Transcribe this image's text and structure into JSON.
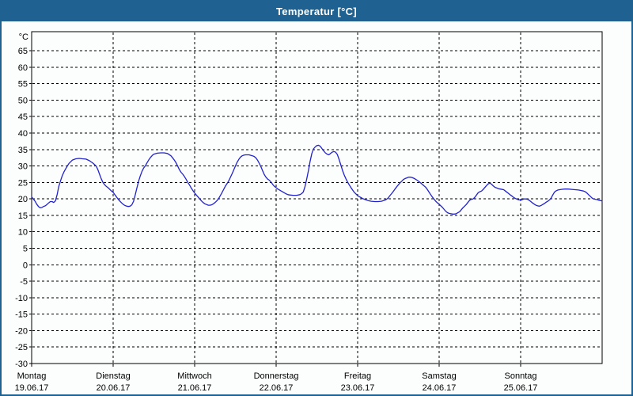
{
  "window": {
    "title": "Temperatur [°C]",
    "titlebar_color": "#1f6291",
    "border_color": "#1f6291",
    "background_color": "#fcfdfd"
  },
  "chart_data": {
    "type": "line",
    "title": "Temperatur [°C]",
    "y_unit_label": "°C",
    "ylabel": "",
    "xlabel": "",
    "ylim": [
      -30,
      70.8
    ],
    "y_ticks": [
      65,
      60,
      55,
      50,
      45,
      40,
      35,
      30,
      25,
      20,
      15,
      10,
      5,
      0,
      -5,
      -10,
      -15,
      -20,
      -25,
      -30
    ],
    "x_hours_total": 168,
    "x_tick_hours": [
      0,
      24,
      48,
      72,
      96,
      120,
      144
    ],
    "x_days": [
      {
        "name": "Montag",
        "date": "19.06.17"
      },
      {
        "name": "Dienstag",
        "date": "20.06.17"
      },
      {
        "name": "Mittwoch",
        "date": "21.06.17"
      },
      {
        "name": "Donnerstag",
        "date": "22.06.17"
      },
      {
        "name": "Freitag",
        "date": "23.06.17"
      },
      {
        "name": "Samstag",
        "date": "24.06.17"
      },
      {
        "name": "Sonntag",
        "date": "25.06.17"
      }
    ],
    "grid": "dashed",
    "legend": "none",
    "line_color": "#2222cc",
    "grid_color": "#000000",
    "frame_color": "#000000",
    "text_color": "#000000",
    "series": [
      {
        "name": "Temperatur",
        "points": [
          [
            0,
            20.6
          ],
          [
            0.5,
            20
          ],
          [
            1,
            19.3
          ],
          [
            1.5,
            18.4
          ],
          [
            2,
            17.7
          ],
          [
            2.5,
            17.3
          ],
          [
            3,
            17.4
          ],
          [
            3.5,
            17.7
          ],
          [
            4,
            17.9
          ],
          [
            4.5,
            18.3
          ],
          [
            5,
            18.8
          ],
          [
            5.5,
            19.2
          ],
          [
            6,
            19.2
          ],
          [
            6.5,
            18.9
          ],
          [
            7,
            19.4
          ],
          [
            7.5,
            21.3
          ],
          [
            8,
            23.8
          ],
          [
            8.5,
            25.5
          ],
          [
            9,
            27
          ],
          [
            9.5,
            28.2
          ],
          [
            10,
            29.1
          ],
          [
            10.5,
            30
          ],
          [
            11,
            30.8
          ],
          [
            11.5,
            31.3
          ],
          [
            12,
            31.8
          ],
          [
            13,
            32.2
          ],
          [
            14,
            32.3
          ],
          [
            15,
            32.2
          ],
          [
            16,
            32.1
          ],
          [
            17,
            31.6
          ],
          [
            18,
            30.9
          ],
          [
            19,
            30
          ],
          [
            19.5,
            28.9
          ],
          [
            20,
            27.5
          ],
          [
            20.5,
            26.1
          ],
          [
            21,
            25
          ],
          [
            21.5,
            24.3
          ],
          [
            22,
            23.8
          ],
          [
            22.5,
            23.4
          ],
          [
            23,
            22.9
          ],
          [
            23.5,
            22.4
          ],
          [
            24,
            22
          ],
          [
            24.5,
            21.3
          ],
          [
            25,
            20.6
          ],
          [
            25.5,
            19.9
          ],
          [
            26,
            19.3
          ],
          [
            26.5,
            18.8
          ],
          [
            27,
            18.3
          ],
          [
            27.5,
            18
          ],
          [
            28,
            17.8
          ],
          [
            28.5,
            17.7
          ],
          [
            29,
            17.8
          ],
          [
            29.5,
            18.2
          ],
          [
            30,
            19.3
          ],
          [
            30.5,
            21.2
          ],
          [
            31,
            23.3
          ],
          [
            31.5,
            25.4
          ],
          [
            32,
            27
          ],
          [
            32.5,
            28.4
          ],
          [
            33,
            29.4
          ],
          [
            33.5,
            30.1
          ],
          [
            34,
            31
          ],
          [
            34.5,
            31.9
          ],
          [
            35,
            32.6
          ],
          [
            35.5,
            33.2
          ],
          [
            36,
            33.6
          ],
          [
            37,
            33.9
          ],
          [
            38,
            34
          ],
          [
            39,
            34
          ],
          [
            40,
            33.8
          ],
          [
            41,
            33.1
          ],
          [
            41.5,
            32.5
          ],
          [
            42,
            31.8
          ],
          [
            42.5,
            31
          ],
          [
            43,
            30
          ],
          [
            43.5,
            28.9
          ],
          [
            44,
            28.1
          ],
          [
            44.5,
            27.5
          ],
          [
            45,
            26.8
          ],
          [
            45.5,
            25.9
          ],
          [
            46,
            25
          ],
          [
            46.5,
            24.2
          ],
          [
            47,
            23.3
          ],
          [
            47.5,
            22.5
          ],
          [
            48,
            21.8
          ],
          [
            48.5,
            21.2
          ],
          [
            49,
            20.6
          ],
          [
            49.5,
            20
          ],
          [
            50,
            19.4
          ],
          [
            50.5,
            18.9
          ],
          [
            51,
            18.5
          ],
          [
            51.5,
            18.3
          ],
          [
            52,
            18.1
          ],
          [
            52.5,
            18.1
          ],
          [
            53,
            18.2
          ],
          [
            53.5,
            18.5
          ],
          [
            54,
            18.9
          ],
          [
            54.5,
            19.4
          ],
          [
            55,
            20
          ],
          [
            55.5,
            20.9
          ],
          [
            56,
            21.8
          ],
          [
            56.5,
            22.8
          ],
          [
            57,
            23.8
          ],
          [
            57.5,
            24.6
          ],
          [
            58,
            25.4
          ],
          [
            58.5,
            26.5
          ],
          [
            59,
            27.6
          ],
          [
            59.5,
            28.8
          ],
          [
            60,
            30
          ],
          [
            60.5,
            31.1
          ],
          [
            61,
            32
          ],
          [
            61.5,
            32.7
          ],
          [
            62,
            33.1
          ],
          [
            62.5,
            33.3
          ],
          [
            63,
            33.4
          ],
          [
            64,
            33.4
          ],
          [
            65,
            33.1
          ],
          [
            65.5,
            32.9
          ],
          [
            66,
            32.5
          ],
          [
            66.5,
            31.8
          ],
          [
            67,
            30.9
          ],
          [
            67.5,
            29.8
          ],
          [
            68,
            28.6
          ],
          [
            68.5,
            27.4
          ],
          [
            69,
            26.6
          ],
          [
            69.5,
            26
          ],
          [
            70,
            25.7
          ],
          [
            70.5,
            25.1
          ],
          [
            71,
            24.4
          ],
          [
            71.5,
            23.8
          ],
          [
            72,
            23.4
          ],
          [
            72.5,
            23
          ],
          [
            73,
            22.7
          ],
          [
            73.5,
            22.4
          ],
          [
            74,
            22.1
          ],
          [
            74.5,
            21.8
          ],
          [
            75,
            21.5
          ],
          [
            75.5,
            21.3
          ],
          [
            76,
            21.2
          ],
          [
            77,
            21.1
          ],
          [
            78,
            21.1
          ],
          [
            79,
            21.3
          ],
          [
            79.5,
            21.6
          ],
          [
            80,
            22.1
          ],
          [
            80.5,
            23.8
          ],
          [
            81,
            26
          ],
          [
            81.5,
            28.6
          ],
          [
            82,
            31.4
          ],
          [
            82.5,
            33.8
          ],
          [
            83,
            35.2
          ],
          [
            83.5,
            35.8
          ],
          [
            84,
            36.2
          ],
          [
            84.5,
            36.3
          ],
          [
            85,
            36
          ],
          [
            85.5,
            35.3
          ],
          [
            86,
            34.6
          ],
          [
            86.5,
            34
          ],
          [
            87,
            33.6
          ],
          [
            87.5,
            33.4
          ],
          [
            88,
            33.8
          ],
          [
            88.5,
            34.2
          ],
          [
            89,
            34.4
          ],
          [
            89.5,
            34.2
          ],
          [
            90,
            33.5
          ],
          [
            90.5,
            32.1
          ],
          [
            91,
            30.5
          ],
          [
            91.5,
            28.8
          ],
          [
            92,
            27.4
          ],
          [
            92.5,
            26.2
          ],
          [
            93,
            25.2
          ],
          [
            93.5,
            24.3
          ],
          [
            94,
            23.5
          ],
          [
            94.5,
            22.7
          ],
          [
            95,
            22
          ],
          [
            95.5,
            21.5
          ],
          [
            96,
            21
          ],
          [
            96.5,
            20.7
          ],
          [
            97,
            20.4
          ],
          [
            97.5,
            20.1
          ],
          [
            98,
            19.9
          ],
          [
            99,
            19.5
          ],
          [
            100,
            19.3
          ],
          [
            101,
            19.2
          ],
          [
            102,
            19.2
          ],
          [
            103,
            19.3
          ],
          [
            104,
            19.6
          ],
          [
            104.5,
            19.9
          ],
          [
            105,
            20.3
          ],
          [
            105.5,
            21
          ],
          [
            106,
            21.6
          ],
          [
            106.5,
            22.3
          ],
          [
            107,
            23
          ],
          [
            107.5,
            23.7
          ],
          [
            108,
            24.3
          ],
          [
            108.5,
            24.9
          ],
          [
            109,
            25.4
          ],
          [
            109.5,
            25.9
          ],
          [
            110,
            26.2
          ],
          [
            110.5,
            26.4
          ],
          [
            111,
            26.6
          ],
          [
            111.5,
            26.6
          ],
          [
            112,
            26.5
          ],
          [
            112.5,
            26.3
          ],
          [
            113,
            26
          ],
          [
            113.5,
            25.7
          ],
          [
            114,
            25.3
          ],
          [
            114.5,
            24.9
          ],
          [
            115,
            24.5
          ],
          [
            115.5,
            24
          ],
          [
            116,
            23.6
          ],
          [
            116.5,
            22.9
          ],
          [
            117,
            22.1
          ],
          [
            117.5,
            21.3
          ],
          [
            118,
            20.6
          ],
          [
            118.5,
            19.9
          ],
          [
            119,
            19.3
          ],
          [
            119.5,
            18.8
          ],
          [
            120,
            18.4
          ],
          [
            120.5,
            17.9
          ],
          [
            121,
            17.4
          ],
          [
            121.5,
            16.8
          ],
          [
            122,
            16.2
          ],
          [
            122.5,
            15.8
          ],
          [
            123,
            15.6
          ],
          [
            123.5,
            15.5
          ],
          [
            124,
            15.4
          ],
          [
            124.5,
            15.4
          ],
          [
            125,
            15.5
          ],
          [
            125.5,
            15.8
          ],
          [
            126,
            16.1
          ],
          [
            126.5,
            16.7
          ],
          [
            127,
            17.3
          ],
          [
            127.5,
            17.8
          ],
          [
            128,
            18.3
          ],
          [
            128.5,
            19
          ],
          [
            129,
            19.6
          ],
          [
            129.5,
            19.9
          ],
          [
            130,
            20
          ],
          [
            130.5,
            20.5
          ],
          [
            131,
            21.2
          ],
          [
            131.5,
            21.9
          ],
          [
            132,
            22.2
          ],
          [
            132.5,
            22.4
          ],
          [
            133,
            22.9
          ],
          [
            133.5,
            23.5
          ],
          [
            134,
            24.1
          ],
          [
            134.5,
            24.6
          ],
          [
            135,
            24.8
          ],
          [
            135.5,
            24.4
          ],
          [
            136,
            23.9
          ],
          [
            136.5,
            23.5
          ],
          [
            137,
            23.3
          ],
          [
            137.5,
            23.1
          ],
          [
            138,
            23
          ],
          [
            139,
            22.8
          ],
          [
            139.5,
            22.4
          ],
          [
            140,
            22
          ],
          [
            140.5,
            21.6
          ],
          [
            141,
            21.2
          ],
          [
            141.5,
            20.8
          ],
          [
            142,
            20.4
          ],
          [
            142.5,
            20.1
          ],
          [
            143,
            19.9
          ],
          [
            143.5,
            19.7
          ],
          [
            144,
            19.7
          ],
          [
            144.5,
            19.8
          ],
          [
            145,
            20
          ],
          [
            145.5,
            20
          ],
          [
            146,
            19.9
          ],
          [
            146.5,
            19.6
          ],
          [
            147,
            19.2
          ],
          [
            147.5,
            18.8
          ],
          [
            148,
            18.4
          ],
          [
            148.5,
            18.1
          ],
          [
            149,
            17.9
          ],
          [
            149.5,
            17.8
          ],
          [
            150,
            18
          ],
          [
            150.5,
            18.3
          ],
          [
            151,
            18.6
          ],
          [
            151.5,
            19
          ],
          [
            152,
            19.3
          ],
          [
            152.5,
            19.7
          ],
          [
            153,
            20.3
          ],
          [
            153.5,
            21.3
          ],
          [
            154,
            22.1
          ],
          [
            154.5,
            22.5
          ],
          [
            155,
            22.7
          ],
          [
            155.5,
            22.8
          ],
          [
            156,
            22.9
          ],
          [
            157,
            23
          ],
          [
            158,
            23
          ],
          [
            159,
            22.9
          ],
          [
            160,
            22.8
          ],
          [
            161,
            22.7
          ],
          [
            162,
            22.5
          ],
          [
            162.5,
            22.4
          ],
          [
            163,
            22.2
          ],
          [
            163.5,
            21.8
          ],
          [
            164,
            21.3
          ],
          [
            164.5,
            20.8
          ],
          [
            165,
            20.3
          ],
          [
            165.5,
            20
          ],
          [
            166,
            19.9
          ],
          [
            166.5,
            19.8
          ],
          [
            167,
            19.6
          ],
          [
            167.5,
            19.5
          ],
          [
            168,
            19.4
          ]
        ]
      }
    ]
  }
}
